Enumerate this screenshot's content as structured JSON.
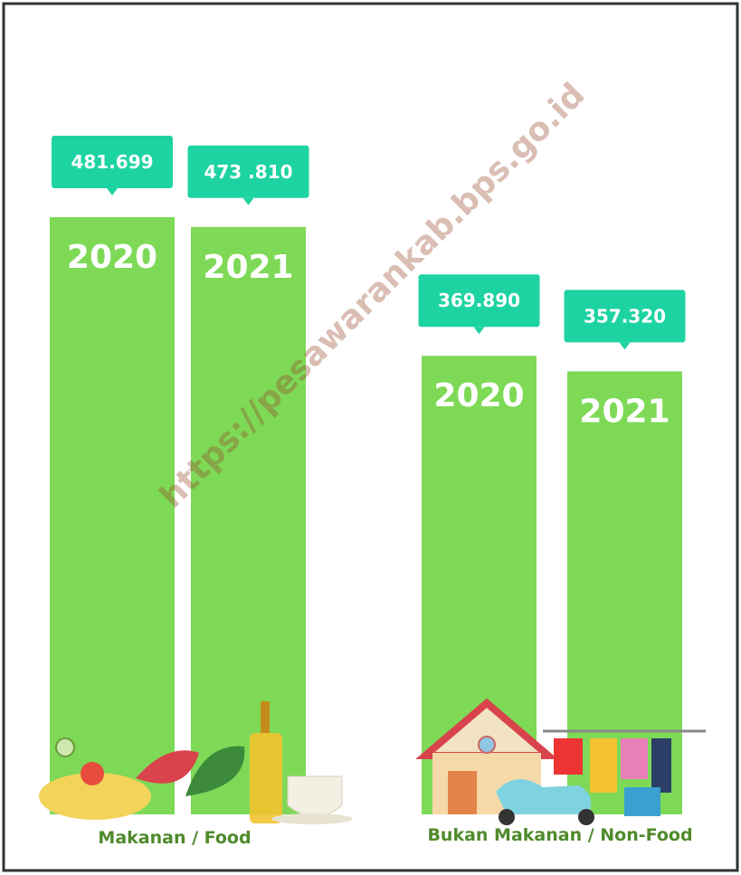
{
  "chart_data": {
    "type": "bar",
    "color": "#7ed957",
    "label_color": "#1ed3a2",
    "watermark": "https://pesawarankab.bps.go.id",
    "groups": [
      {
        "name": "Makanan / Food",
        "categories": [
          "2020",
          "2021"
        ],
        "values": [
          481699,
          473810
        ],
        "value_labels": [
          "481.699",
          "473 .810"
        ]
      },
      {
        "name": "Bukan Makanan / Non-Food",
        "categories": [
          "2020",
          "2021"
        ],
        "values": [
          369890,
          357320
        ],
        "value_labels": [
          "369.890",
          "357.320"
        ]
      }
    ]
  }
}
